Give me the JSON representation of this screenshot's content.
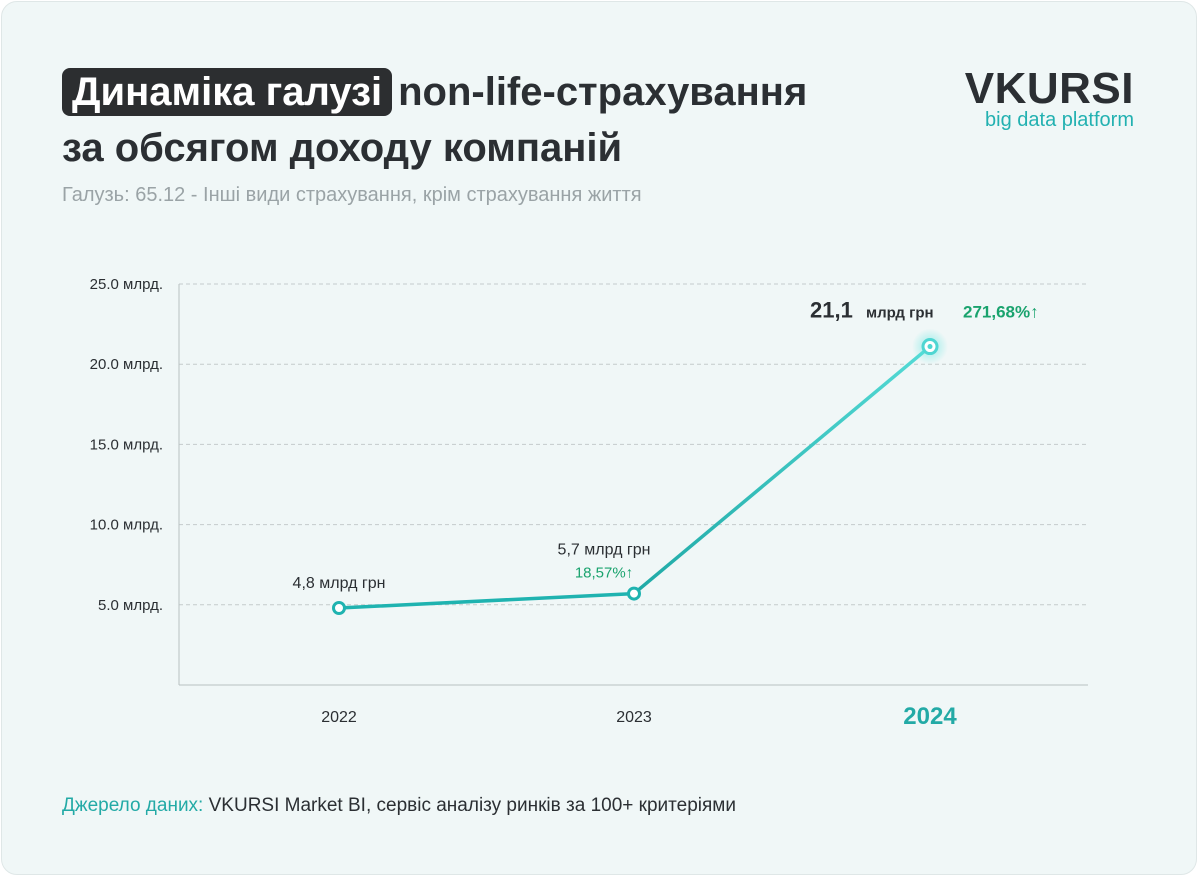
{
  "header": {
    "title_highlight": "Динаміка галузі",
    "title_rest": "non-life-страхування",
    "title_line2": "за обсягом доходу компаній",
    "subtitle": "Галузь: 65.12 - Інші види страхування, крім страхування життя"
  },
  "logo": {
    "main": "VKURSI",
    "sub": "big data platform"
  },
  "source": {
    "label": "Джерело даних:",
    "text": "VKURSI Market BI, сервіс аналізу ринків за 100+ критеріями"
  },
  "colors": {
    "line": "#1fb3b0",
    "line_light": "#4fd6d2",
    "positive": "#1aa36e",
    "axis_text": "#2b2f33",
    "grid": "#c4cbcc",
    "highlight_year": "#23aaa6"
  },
  "chart_data": {
    "type": "line",
    "x": [
      "2022",
      "2023",
      "2024"
    ],
    "values": [
      4.8,
      5.7,
      21.1
    ],
    "ylim": [
      0,
      25
    ],
    "yticks": [
      5,
      10,
      15,
      20,
      25
    ],
    "ytick_labels": [
      "5.0 млрд.",
      "10.0 млрд.",
      "15.0 млрд.",
      "20.0 млрд.",
      "25.0 млрд."
    ],
    "grid": true,
    "point_labels": [
      "4,8 млрд грн",
      "5,7 млрд грн",
      ""
    ],
    "last_value": "21,1",
    "last_unit": "млрд грн",
    "changes": [
      "",
      "18,57%↑",
      "271,68%↑"
    ],
    "highlight_x": "2024"
  }
}
